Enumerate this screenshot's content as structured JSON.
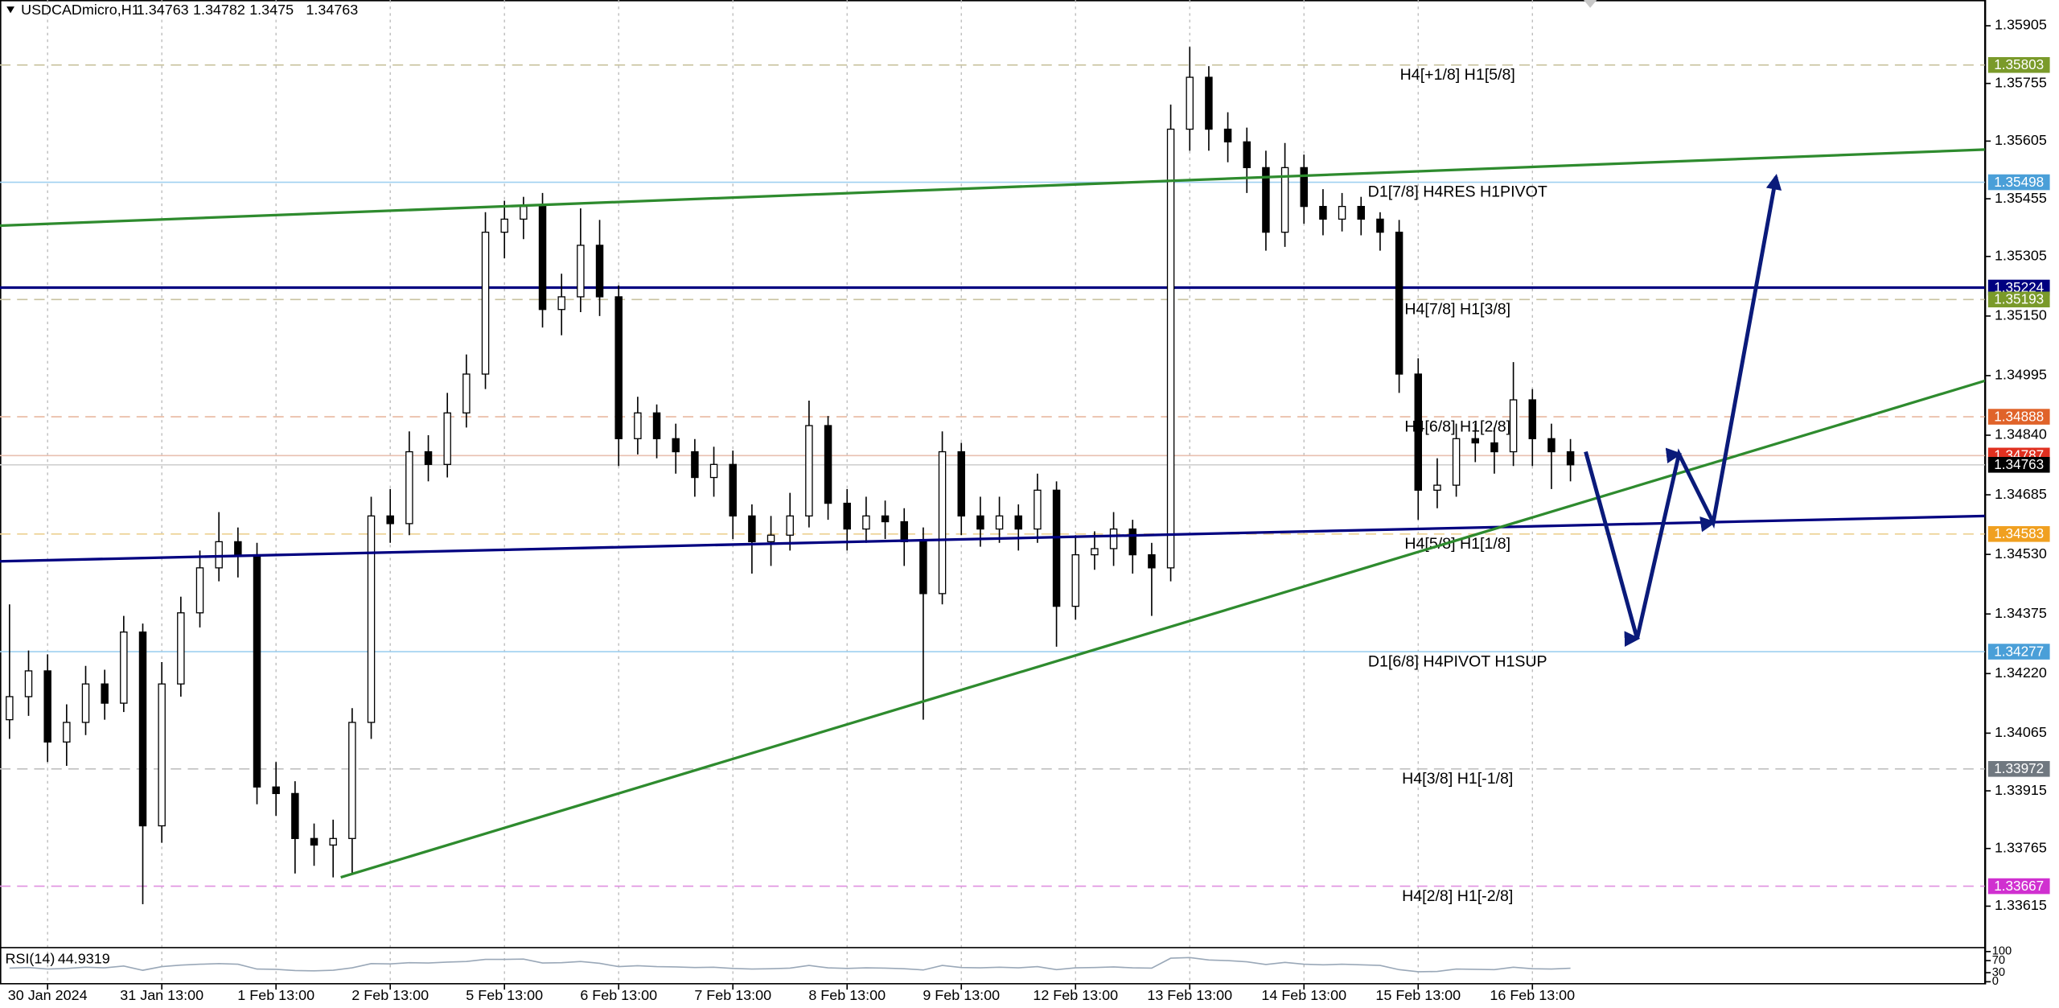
{
  "chart_data": {
    "type": "candlestick",
    "symbol": "USDCADmicro,H1",
    "quote": [
      1.34763,
      1.34782,
      1.3475,
      1.34763
    ],
    "grid": "vertical",
    "xlim": [
      -0.5,
      103.8
    ],
    "ylim": [
      1.33514,
      1.35972
    ],
    "yticks": [
      1.35905,
      1.35755,
      1.35605,
      1.35455,
      1.35305,
      {
        "value": 1.3515,
        "label": "1.35150"
      },
      1.34995,
      {
        "value": 1.3484,
        "label": "1.34840"
      },
      1.34685,
      {
        "value": 1.3453,
        "label": "1.34530"
      },
      1.34375,
      {
        "value": 1.3422,
        "label": "1.34220"
      },
      1.34065,
      1.33915,
      1.33765,
      1.33615
    ],
    "xticks": [
      {
        "value": 2,
        "label": "30 Jan 2024"
      },
      {
        "value": 8,
        "label": "31 Jan 13:00"
      },
      {
        "value": 14,
        "label": "1 Feb 13:00"
      },
      {
        "value": 20,
        "label": "2 Feb 13:00"
      },
      {
        "value": 26,
        "label": "5 Feb 13:00"
      },
      {
        "value": 32,
        "label": "6 Feb 13:00"
      },
      {
        "value": 38,
        "label": "7 Feb 13:00"
      },
      {
        "value": 44,
        "label": "8 Feb 13:00"
      },
      {
        "value": 50,
        "label": "9 Feb 13:00"
      },
      {
        "value": 56,
        "label": "12 Feb 13:00"
      },
      {
        "value": 62,
        "label": "13 Feb 13:00"
      },
      {
        "value": 68,
        "label": "14 Feb 13:00"
      },
      {
        "value": 74,
        "label": "15 Feb 13:00"
      },
      {
        "value": 80,
        "label": "16 Feb 13:00"
      }
    ],
    "open": [
      1.341,
      1.3416,
      1.34227,
      1.34042,
      1.34093,
      1.34193,
      1.34143,
      1.34328,
      1.33824,
      1.34193,
      1.34378,
      1.34495,
      1.34563,
      1.34529,
      1.33925,
      1.33908,
      1.33791,
      1.33774,
      1.33791,
      1.34093,
      1.3463,
      1.3461,
      1.34797,
      1.34764,
      1.34898,
      1.34999,
      1.35368,
      1.35402,
      1.35435,
      1.35167,
      1.352,
      1.35334,
      1.352,
      1.34831,
      1.34898,
      1.34831,
      1.34797,
      1.3473,
      1.34764,
      1.3463,
      1.34563,
      1.3458,
      1.3463,
      1.34865,
      1.34663,
      1.34596,
      1.3463,
      1.34615,
      1.34563,
      1.34428,
      1.34797,
      1.3463,
      1.34596,
      1.3463,
      1.34596,
      1.34697,
      1.34395,
      1.34529,
      1.34545,
      1.34596,
      1.34529,
      1.34495,
      1.35636,
      1.35771,
      1.35636,
      1.35603,
      1.35536,
      1.35368,
      1.35536,
      1.35435,
      1.35402,
      1.35435,
      1.35402,
      1.35368,
      1.34999,
      1.34697,
      1.3471,
      1.34831,
      1.3482,
      1.34797,
      1.34932,
      1.34831,
      1.34797
    ],
    "high": [
      1.344,
      1.3428,
      1.3427,
      1.3414,
      1.3424,
      1.3423,
      1.3437,
      1.3435,
      1.3425,
      1.3442,
      1.3454,
      1.3464,
      1.346,
      1.3456,
      1.3399,
      1.3394,
      1.3383,
      1.3384,
      1.3413,
      1.3468,
      1.347,
      1.3485,
      1.3484,
      1.3495,
      1.3505,
      1.3542,
      1.3545,
      1.3546,
      1.3547,
      1.3526,
      1.3543,
      1.354,
      1.3523,
      1.3494,
      1.3492,
      1.3487,
      1.3483,
      1.3481,
      1.348,
      1.3466,
      1.3463,
      1.3469,
      1.3493,
      1.3489,
      1.347,
      1.3468,
      1.3467,
      1.3465,
      1.346,
      1.3485,
      1.3482,
      1.3468,
      1.3468,
      1.3466,
      1.3474,
      1.3472,
      1.3458,
      1.3459,
      1.3464,
      1.3462,
      1.3456,
      1.357,
      1.3585,
      1.358,
      1.3568,
      1.3564,
      1.3558,
      1.356,
      1.3557,
      1.3548,
      1.3547,
      1.3546,
      1.3542,
      1.354,
      1.3504,
      1.3478,
      1.3487,
      1.3487,
      1.3486,
      1.3503,
      1.3496,
      1.3487,
      1.3483
    ],
    "low": [
      1.3405,
      1.3411,
      1.3399,
      1.3398,
      1.3406,
      1.341,
      1.3412,
      1.3362,
      1.3378,
      1.3416,
      1.3434,
      1.3446,
      1.3447,
      1.3388,
      1.3385,
      1.337,
      1.3372,
      1.3369,
      1.337,
      1.3405,
      1.3456,
      1.3458,
      1.3472,
      1.3473,
      1.3486,
      1.3496,
      1.353,
      1.3535,
      1.3512,
      1.351,
      1.3516,
      1.3515,
      1.3476,
      1.3479,
      1.3478,
      1.3474,
      1.3468,
      1.3468,
      1.3457,
      1.3448,
      1.345,
      1.3454,
      1.346,
      1.3462,
      1.3454,
      1.3456,
      1.3457,
      1.345,
      1.341,
      1.344,
      1.3458,
      1.3455,
      1.3456,
      1.3454,
      1.3456,
      1.3429,
      1.3436,
      1.3449,
      1.345,
      1.3448,
      1.3437,
      1.3446,
      1.3558,
      1.3558,
      1.3555,
      1.3547,
      1.3532,
      1.3533,
      1.3539,
      1.3536,
      1.3537,
      1.3536,
      1.3532,
      1.3495,
      1.3462,
      1.3465,
      1.3468,
      1.3477,
      1.3474,
      1.3476,
      1.3476,
      1.347,
      1.3472
    ],
    "close": [
      1.3416,
      1.34227,
      1.34042,
      1.34093,
      1.34193,
      1.34143,
      1.34328,
      1.33824,
      1.34193,
      1.34378,
      1.34495,
      1.34563,
      1.34529,
      1.33925,
      1.33908,
      1.33791,
      1.33774,
      1.33791,
      1.34093,
      1.3463,
      1.3461,
      1.34797,
      1.34764,
      1.34898,
      1.34999,
      1.35368,
      1.35402,
      1.35435,
      1.35167,
      1.352,
      1.35334,
      1.352,
      1.34831,
      1.34898,
      1.34831,
      1.34797,
      1.3473,
      1.34764,
      1.3463,
      1.34563,
      1.3458,
      1.3463,
      1.34865,
      1.34663,
      1.34596,
      1.3463,
      1.34615,
      1.34563,
      1.34428,
      1.34797,
      1.3463,
      1.34596,
      1.3463,
      1.34596,
      1.34697,
      1.34395,
      1.34529,
      1.34545,
      1.34596,
      1.34529,
      1.34495,
      1.35636,
      1.35771,
      1.35636,
      1.35603,
      1.35536,
      1.35368,
      1.35536,
      1.35435,
      1.35402,
      1.35435,
      1.35402,
      1.35368,
      1.34999,
      1.34697,
      1.3471,
      1.34831,
      1.3482,
      1.34797,
      1.34932,
      1.34831,
      1.34797,
      1.34763
    ],
    "levels": [
      {
        "value": 1.35803,
        "label": "H4[+1/8] H1[5/8]",
        "color": "#7a9a2a",
        "line_color": "#c9c3a0",
        "dashed": true
      },
      {
        "value": 1.35498,
        "label": "D1[7/8] H4RES H1PIVOT",
        "color": "#4a9fd8",
        "line_color": "#9fd0f0",
        "dashed": false
      },
      {
        "value": 1.35224,
        "color": "#000080",
        "line_color": "#000080",
        "dashed": false
      },
      {
        "value": 1.35193,
        "label": "H4[7/8] H1[3/8]",
        "color": "#7a9a2a",
        "line_color": "#c9c3a0",
        "dashed": true
      },
      {
        "value": 1.34888,
        "label": "H4[6/8] H1[2/8]",
        "color": "#e0632a",
        "line_color": "#e8b8a0",
        "dashed": true
      },
      {
        "value": 1.34787,
        "color": "#e03020",
        "line_color": "#e8c0b0",
        "dashed": false
      },
      {
        "value": 1.34763,
        "color": "#000000",
        "line_color": "#d0d0d0",
        "dashed": false
      },
      {
        "value": 1.34583,
        "label": "H4[5/8] H1[1/8]",
        "color": "#f0a020",
        "line_color": "#ecd090",
        "dashed": true
      },
      {
        "value": 1.34277,
        "label": "D1[6/8] H4PIVOT H1SUP",
        "color": "#4a9fd8",
        "line_color": "#9fd0f0",
        "dashed": false
      },
      {
        "value": 1.33972,
        "label": "H4[3/8] H1[-1/8]",
        "color": "#707880",
        "line_color": "#c0c0c0",
        "dashed": true
      },
      {
        "value": 1.33667,
        "label": "H4[2/8] H1[-2/8]",
        "color": "#d030d0",
        "line_color": "#e090e0",
        "dashed": true
      }
    ],
    "trendlines": [
      {
        "color": "#2e8b2e",
        "x": [
          -0.5,
          103.8
        ],
        "y": [
          1.35385,
          1.35583
        ]
      },
      {
        "color": "#000080",
        "x": [
          -0.5,
          103.8
        ],
        "y": [
          1.34512,
          1.3463
        ]
      },
      {
        "color": "#2e8b2e",
        "x": [
          17.4,
          103.8
        ],
        "y": [
          1.3369,
          1.34982
        ]
      }
    ],
    "forecast": {
      "color": "#0a1a7a",
      "x": [
        82.8,
        85.5,
        87.7,
        89.5,
        92.8
      ],
      "y": [
        1.34797,
        1.34311,
        1.34791,
        1.34613,
        1.35512
      ]
    },
    "rsi": {
      "label": "RSI(14)",
      "color": "#9aa8b8",
      "ylim": [
        0,
        100
      ],
      "yticks": [
        100,
        70,
        30,
        0
      ],
      "values": [
        45,
        47,
        42,
        44,
        48,
        46,
        52,
        38,
        50,
        55,
        58,
        60,
        58,
        42,
        41,
        37,
        36,
        38,
        46,
        60,
        59,
        63,
        62,
        65,
        67,
        74,
        74,
        75,
        62,
        63,
        67,
        61,
        50,
        53,
        50,
        49,
        47,
        48,
        44,
        42,
        43,
        45,
        54,
        46,
        44,
        46,
        45,
        43,
        39,
        54,
        47,
        46,
        48,
        46,
        50,
        40,
        46,
        47,
        49,
        46,
        45,
        78,
        80,
        72,
        70,
        66,
        57,
        64,
        58,
        56,
        58,
        56,
        54,
        40,
        33,
        34,
        42,
        41,
        40,
        48,
        43,
        42,
        44.9319
      ]
    }
  }
}
